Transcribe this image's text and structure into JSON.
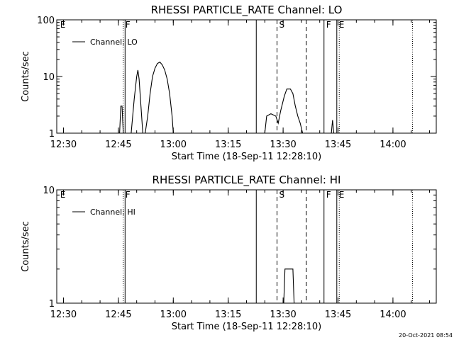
{
  "footer_date": "20-Oct-2021 08:54",
  "chart_data": [
    {
      "type": "line",
      "title": "RHESSI PARTICLE_RATE Channel: LO",
      "xlabel": "Start Time (18-Sep-11 12:28:10)",
      "ylabel": "Counts/sec",
      "yscale": "log",
      "ylim": [
        1,
        100
      ],
      "xlim": [
        "12:28:10",
        "14:11:50"
      ],
      "x_ticks": [
        "12:30",
        "12:45",
        "13:00",
        "13:15",
        "13:30",
        "13:45",
        "14:00"
      ],
      "y_ticks": [
        "1",
        "10",
        "100"
      ],
      "legend": "top-left",
      "legend_label": "Channel: LO",
      "flags": [
        {
          "label": "E",
          "time": "12:28:30",
          "line": "none"
        },
        {
          "label": "F",
          "time": "12:46:20",
          "line": "dotted"
        },
        {
          "label": "",
          "time": "12:46:50",
          "line": "solid"
        },
        {
          "label": "",
          "time": "13:22:40",
          "line": "solid"
        },
        {
          "label": "S",
          "time": "13:28:20",
          "line": "dashed"
        },
        {
          "label": "",
          "time": "13:36:20",
          "line": "dashed"
        },
        {
          "label": "F",
          "time": "13:41:10",
          "line": "solid"
        },
        {
          "label": "E",
          "time": "13:44:40",
          "line": "solid"
        },
        {
          "label": "",
          "time": "13:45:20",
          "line": "dotted"
        },
        {
          "label": "",
          "time": "14:05:20",
          "line": "dotted"
        }
      ],
      "segments": [
        [
          [
            "12:45:20",
            1
          ],
          [
            "12:45:40",
            3
          ],
          [
            "12:46:00",
            3
          ],
          [
            "12:46:20",
            1
          ]
        ],
        [
          [
            "12:48:30",
            1
          ],
          [
            "12:49:20",
            4
          ],
          [
            "12:50:00",
            10
          ],
          [
            "12:50:20",
            13
          ],
          [
            "12:50:40",
            9
          ],
          [
            "12:51:10",
            3
          ],
          [
            "12:51:40",
            1
          ]
        ],
        [
          [
            "12:52:20",
            1
          ],
          [
            "12:53:00",
            2
          ],
          [
            "12:53:40",
            5
          ],
          [
            "12:54:20",
            10
          ],
          [
            "12:55:00",
            14
          ],
          [
            "12:55:40",
            17
          ],
          [
            "12:56:20",
            18
          ],
          [
            "12:57:00",
            16
          ],
          [
            "12:57:40",
            13
          ],
          [
            "12:58:20",
            9
          ],
          [
            "12:59:00",
            5
          ],
          [
            "12:59:40",
            2
          ],
          [
            "13:00:00",
            1
          ]
        ],
        [
          [
            "13:25:00",
            1
          ],
          [
            "13:25:30",
            2
          ],
          [
            "13:26:40",
            2.2
          ],
          [
            "13:28:00",
            2
          ],
          [
            "13:28:40",
            1.5
          ],
          [
            "13:29:20",
            2.5
          ],
          [
            "13:30:20",
            4.5
          ],
          [
            "13:31:00",
            6
          ],
          [
            "13:32:00",
            6
          ],
          [
            "13:32:40",
            5
          ],
          [
            "13:33:20",
            3
          ],
          [
            "13:34:00",
            2
          ],
          [
            "13:34:40",
            1.5
          ],
          [
            "13:35:20",
            1
          ]
        ],
        [
          [
            "13:43:10",
            1
          ],
          [
            "13:43:30",
            1.7
          ],
          [
            "13:43:50",
            1
          ]
        ]
      ]
    },
    {
      "type": "line",
      "title": "RHESSI PARTICLE_RATE Channel: HI",
      "xlabel": "Start Time (18-Sep-11 12:28:10)",
      "ylabel": "Counts/sec",
      "yscale": "log",
      "ylim": [
        1,
        10
      ],
      "xlim": [
        "12:28:10",
        "14:11:50"
      ],
      "x_ticks": [
        "12:30",
        "12:45",
        "13:00",
        "13:15",
        "13:30",
        "13:45",
        "14:00"
      ],
      "y_ticks": [
        "1",
        "10"
      ],
      "legend": "top-left",
      "legend_label": "Channel: HI",
      "flags": [
        {
          "label": "E",
          "time": "12:28:30",
          "line": "none"
        },
        {
          "label": "F",
          "time": "12:46:20",
          "line": "dotted"
        },
        {
          "label": "",
          "time": "12:46:50",
          "line": "solid"
        },
        {
          "label": "",
          "time": "13:22:40",
          "line": "solid"
        },
        {
          "label": "S",
          "time": "13:28:20",
          "line": "dashed"
        },
        {
          "label": "",
          "time": "13:36:20",
          "line": "dashed"
        },
        {
          "label": "F",
          "time": "13:41:10",
          "line": "solid"
        },
        {
          "label": "E",
          "time": "13:44:40",
          "line": "solid"
        },
        {
          "label": "",
          "time": "13:45:20",
          "line": "dotted"
        },
        {
          "label": "",
          "time": "14:05:20",
          "line": "dotted"
        }
      ],
      "segments": [
        [
          [
            "13:30:10",
            1
          ],
          [
            "13:30:30",
            2
          ],
          [
            "13:32:40",
            2
          ],
          [
            "13:33:00",
            1
          ]
        ]
      ]
    }
  ]
}
